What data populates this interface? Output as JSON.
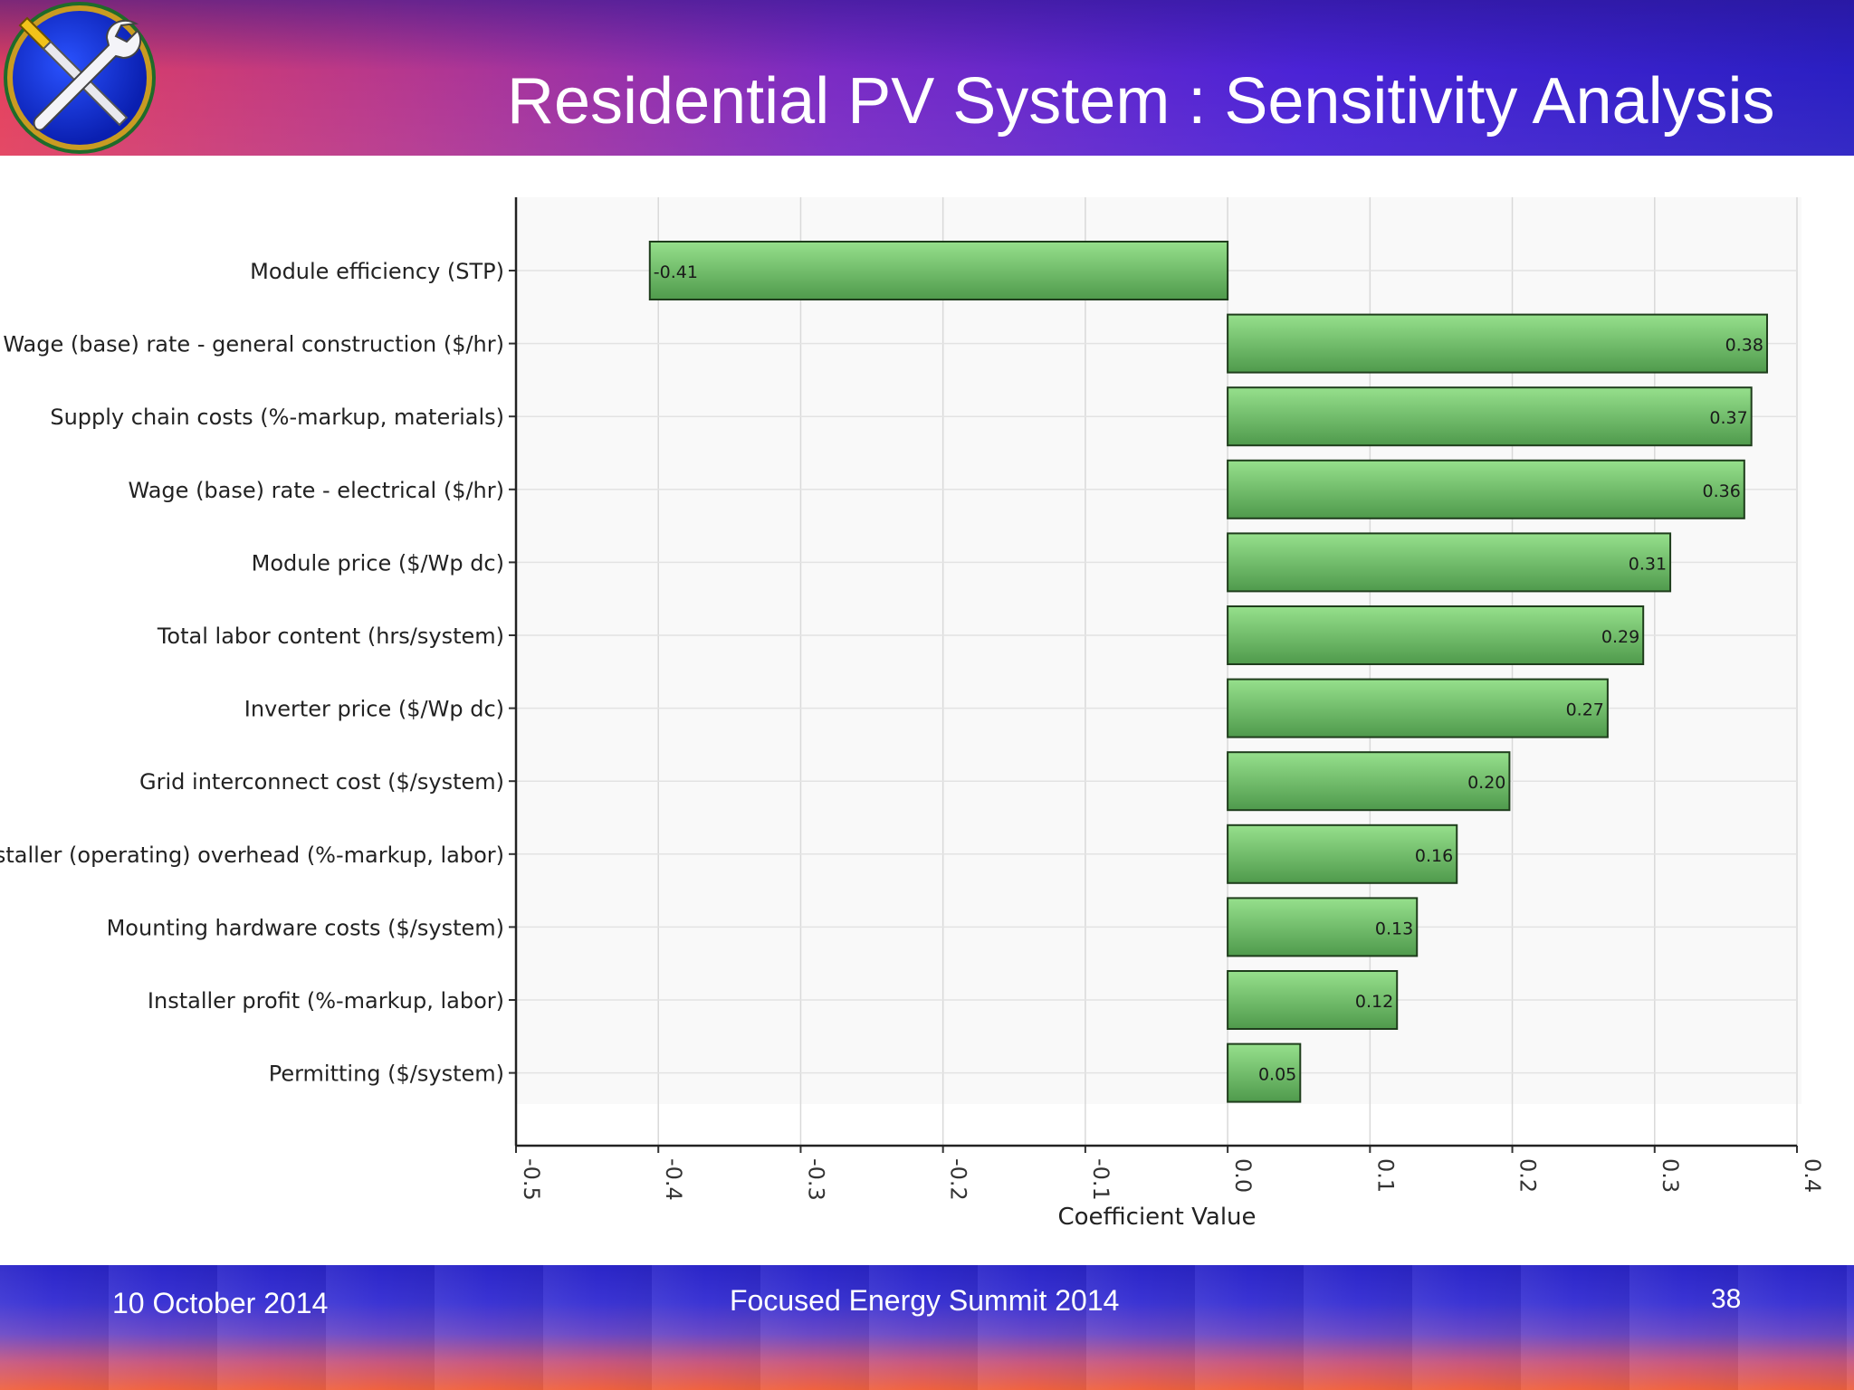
{
  "slide": {
    "title": "Residential PV System : Sensitivity Analysis"
  },
  "footer": {
    "date": "10 October 2014",
    "event": "Focused Energy Summit  2014",
    "page": "38"
  },
  "colors": {
    "bar_fill_light": "#96e08c",
    "bar_fill_dark": "#4f9a4c",
    "bar_stroke": "#1f3d1c"
  },
  "logo_icon": "wrench-screwdriver-icon",
  "chart_data": {
    "type": "bar",
    "orientation": "horizontal",
    "categories": [
      "Module efficiency (STP)",
      "Wage (base) rate - general construction ($/hr)",
      "Supply chain costs (%-markup, materials)",
      "Wage (base) rate - electrical ($/hr)",
      "Module price ($/Wp dc)",
      "Total labor content (hrs/system)",
      "Inverter price ($/Wp dc)",
      "Grid interconnect cost ($/system)",
      "Installer (operating) overhead (%-markup, labor)",
      "Mounting hardware costs ($/system)",
      "Installer profit (%-markup, labor)",
      "Permitting ($/system)"
    ],
    "values": [
      -0.406,
      0.379,
      0.368,
      0.363,
      0.311,
      0.292,
      0.267,
      0.198,
      0.161,
      0.133,
      0.119,
      0.051
    ],
    "data_labels": [
      "-0.41",
      "0.38",
      "0.37",
      "0.36",
      "0.31",
      "0.29",
      "0.27",
      "0.20",
      "0.16",
      "0.13",
      "0.12",
      "0.05"
    ],
    "xlabel": "Coefficient Value",
    "ylabel": "",
    "xlim": [
      -0.5,
      0.4
    ],
    "xticks": [
      "-0.5",
      "-0.4",
      "-0.3",
      "-0.2",
      "-0.1",
      "0.0",
      "0.1",
      "0.2",
      "0.3",
      "0.4"
    ],
    "grid": true
  }
}
